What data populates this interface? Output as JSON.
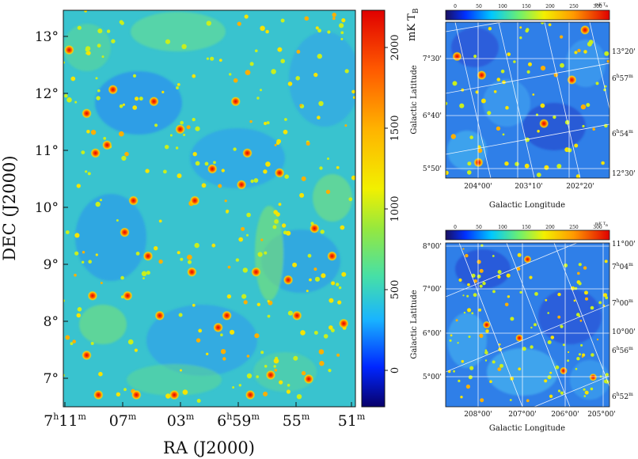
{
  "chart_data": [
    {
      "id": "main",
      "type": "heatmap",
      "xlabel": "RA (J2000)",
      "ylabel": "DEC (J2000)",
      "x_ticks": [
        {
          "label": "7h11m",
          "h": "7",
          "m": "11"
        },
        {
          "label": "07m",
          "h": "",
          "m": "07"
        },
        {
          "label": "03m",
          "h": "",
          "m": "03"
        },
        {
          "label": "6h59m",
          "h": "6",
          "m": "59"
        },
        {
          "label": "55m",
          "h": "",
          "m": "55"
        },
        {
          "label": "51m",
          "h": "",
          "m": "51"
        }
      ],
      "y_ticks": [
        "13°",
        "12°",
        "11°",
        "10°",
        "9°",
        "8°",
        "7°"
      ],
      "y_values": [
        13,
        12,
        11,
        10,
        9,
        8,
        7
      ],
      "ylim": [
        6.55,
        13.45
      ],
      "colorbar": {
        "label": "mK T",
        "label_sub": "B",
        "ticks": [
          2000,
          1500,
          1000,
          500,
          0
        ],
        "range": [
          -200,
          2250
        ],
        "colors": [
          "#08006a",
          "#0026ff",
          "#19b4ff",
          "#47e0a6",
          "#96e83e",
          "#f2f000",
          "#ffb300",
          "#ff5a00",
          "#e00000"
        ]
      },
      "sources": [
        [
          0.02,
          0.1
        ],
        [
          0.08,
          0.26
        ],
        [
          0.11,
          0.36
        ],
        [
          0.1,
          0.72
        ],
        [
          0.08,
          0.87
        ],
        [
          0.15,
          0.34
        ],
        [
          0.17,
          0.2
        ],
        [
          0.21,
          0.56
        ],
        [
          0.22,
          0.72
        ],
        [
          0.24,
          0.48
        ],
        [
          0.31,
          0.23
        ],
        [
          0.29,
          0.62
        ],
        [
          0.33,
          0.77
        ],
        [
          0.4,
          0.3
        ],
        [
          0.45,
          0.48
        ],
        [
          0.44,
          0.66
        ],
        [
          0.51,
          0.4
        ],
        [
          0.53,
          0.8
        ],
        [
          0.56,
          0.77
        ],
        [
          0.59,
          0.23
        ],
        [
          0.61,
          0.44
        ],
        [
          0.63,
          0.36
        ],
        [
          0.66,
          0.66
        ],
        [
          0.74,
          0.41
        ],
        [
          0.77,
          0.68
        ],
        [
          0.8,
          0.77
        ],
        [
          0.86,
          0.55
        ],
        [
          0.92,
          0.62
        ],
        [
          0.96,
          0.79
        ],
        [
          0.71,
          0.92
        ],
        [
          0.84,
          0.93
        ],
        [
          0.38,
          0.97
        ],
        [
          0.12,
          0.97
        ],
        [
          0.25,
          0.97
        ],
        [
          0.64,
          0.97
        ]
      ]
    },
    {
      "id": "top-right",
      "type": "heatmap",
      "xlabel": "Galactic Longitude",
      "ylabel": "Galactic Latitude",
      "x_ticks": [
        "204°00'",
        "203°10'",
        "202°20'"
      ],
      "y_ticks": [
        "7°30'",
        "6°40'",
        "5°50'"
      ],
      "right_labels": [
        {
          "text": "13°20'",
          "h": "",
          "m": ""
        },
        {
          "text": "6h57m",
          "h": "6",
          "m": "57"
        },
        {
          "text": "6h54m",
          "h": "6",
          "m": "54"
        },
        {
          "text": "12°30'",
          "h": "",
          "m": ""
        }
      ],
      "colorbar": {
        "ticks": [
          0,
          50,
          100,
          150,
          200,
          250,
          300
        ],
        "label": "mK T",
        "label_sub": "B",
        "range": [
          -20,
          330
        ]
      }
    },
    {
      "id": "bottom-right",
      "type": "heatmap",
      "xlabel": "Galactic Longitude",
      "ylabel": "Galactic Latitude",
      "x_ticks": [
        "208°00'",
        "207°00'",
        "206°00'",
        "205°00'"
      ],
      "y_ticks": [
        "8°00'",
        "7°00'",
        "6°00'",
        "5°00'"
      ],
      "right_labels": [
        {
          "text": "11°00'",
          "h": "",
          "m": ""
        },
        {
          "text": "7h04m",
          "h": "7",
          "m": "04"
        },
        {
          "text": "7h00m",
          "h": "7",
          "m": "00"
        },
        {
          "text": "10°00'",
          "h": "",
          "m": ""
        },
        {
          "text": "6h56m",
          "h": "6",
          "m": "56"
        },
        {
          "text": "6h52m",
          "h": "6",
          "m": "52"
        }
      ],
      "colorbar": {
        "ticks": [
          0,
          50,
          100,
          150,
          200,
          250,
          300
        ],
        "label": "mK T",
        "label_sub": "B",
        "range": [
          -20,
          330
        ]
      }
    }
  ]
}
